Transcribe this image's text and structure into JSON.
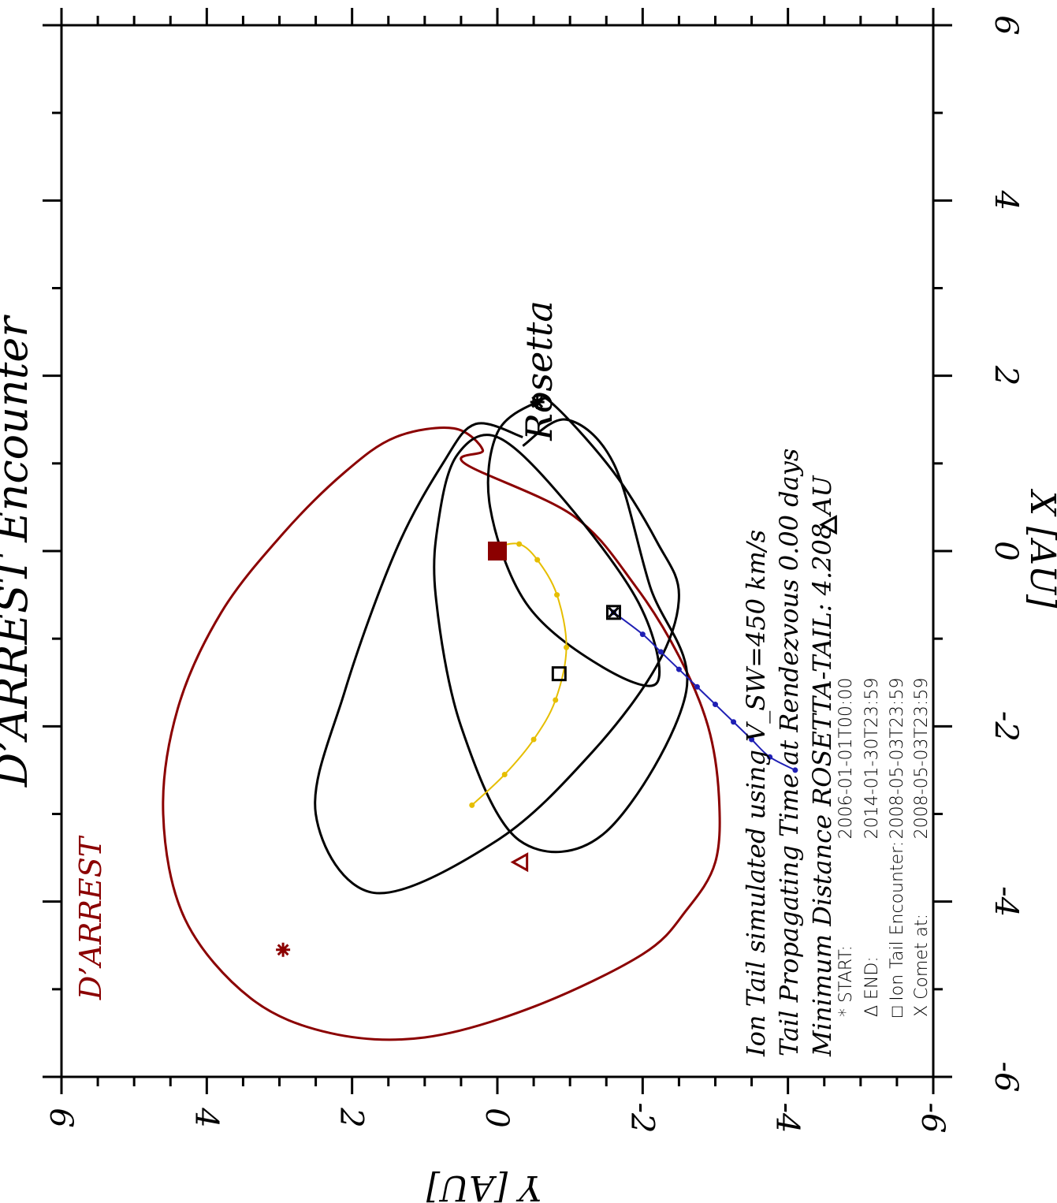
{
  "chart_data": {
    "type": "scatter",
    "title": "D’ARREST Encounter",
    "xlabel": "X [AU]",
    "ylabel": "Y [AU]",
    "xlim": [
      -6,
      6
    ],
    "ylim": [
      -6,
      6
    ],
    "x_ticks": [
      "-6",
      "-4",
      "-2",
      "0",
      "2",
      "4",
      "6"
    ],
    "y_ticks": [
      "6",
      "4",
      "2",
      "0",
      "-2",
      "-4",
      "-6"
    ],
    "grid": false,
    "comet_label": "D’ARREST",
    "spacecraft_label": "Rosetta",
    "info": [
      "Ion Tail simulated using  V_SW=450 km/s",
      "Tail Propagating Time at Rendezvous  0.00 days",
      "Minimum Distance ROSETTA-TAIL: 4.208 AU"
    ],
    "legend": [
      {
        "symbol": "*",
        "label": "START:",
        "value": "2006-01-01T00:00"
      },
      {
        "symbol": "Δ",
        "label": "END:",
        "value": "2014-01-30T23:59"
      },
      {
        "symbol": "□",
        "label": "Ion Tail Encounter:",
        "value": "2008-05-03T23:59"
      },
      {
        "symbol": "X",
        "label": "Comet at:",
        "value": "2008-05-03T23:59"
      }
    ],
    "colors": {
      "comet": "#8b0000",
      "rosetta": "#000000",
      "ion_tail": "#1f1fb4",
      "model_tail": "#e6be00",
      "sun": "#8b0000"
    },
    "series": [
      {
        "name": "D’ARREST",
        "description": "comet orbit",
        "x": [
          1.0,
          0.4,
          -0.4,
          -1.2,
          -2.0,
          -2.8,
          -3.55,
          -4.1,
          -4.6,
          -5.2,
          -5.55,
          -5.5,
          -5.1,
          -4.2,
          -3.0,
          -1.8,
          -0.7,
          0.2,
          0.9,
          1.3,
          1.4,
          1.15
        ],
        "y": [
          0.45,
          -1.05,
          -1.9,
          -2.5,
          -2.9,
          -3.05,
          -3.0,
          -2.6,
          -2.0,
          -0.5,
          1.0,
          2.3,
          3.4,
          4.3,
          4.6,
          4.4,
          3.8,
          2.95,
          2.1,
          1.4,
          0.6,
          0.2
        ]
      },
      {
        "name": "Rosetta",
        "description": "spacecraft trajectory loops",
        "x": [
          1.2,
          1.5,
          1.0,
          -0.4,
          -1.6,
          -3.2,
          -3.3,
          -2.0,
          -0.5,
          0.4,
          1.1,
          1.3,
          0.6,
          -0.6,
          -1.5,
          -1.3,
          -0.6,
          0.5,
          1.35,
          1.7,
          1.65,
          0.9,
          0.1,
          -0.5,
          -1.3,
          -2.3,
          -3.3,
          -3.9,
          -3.0,
          -1.6,
          0.0,
          1.0,
          1.45,
          1.3
        ],
        "y": [
          -0.35,
          -0.95,
          -1.6,
          -2.1,
          -2.6,
          -1.5,
          -0.3,
          0.5,
          0.85,
          0.8,
          0.55,
          0.0,
          -0.9,
          -1.95,
          -2.2,
          -1.4,
          -0.4,
          0.1,
          0.0,
          -0.55,
          -0.8,
          -1.6,
          -2.2,
          -2.5,
          -2.2,
          -1.3,
          0.0,
          1.7,
          2.5,
          2.1,
          1.4,
          0.75,
          0.3,
          -0.35
        ]
      },
      {
        "name": "ion tail",
        "description": "simulated ion tail (blue, dotted)",
        "x": [
          -0.7,
          -0.95,
          -1.15,
          -1.35,
          -1.55,
          -1.75,
          -1.95,
          -2.15,
          -2.35,
          -2.5
        ],
        "y": [
          -1.6,
          -2.0,
          -2.25,
          -2.5,
          -2.75,
          -3.0,
          -3.25,
          -3.5,
          -3.75,
          -4.1
        ]
      },
      {
        "name": "model tail",
        "description": "yellow trajectory from Sun",
        "x": [
          0.05,
          0.08,
          -0.1,
          -0.5,
          -1.1,
          -1.7,
          -2.15,
          -2.55,
          -2.9
        ],
        "y": [
          0.0,
          -0.3,
          -0.55,
          -0.82,
          -0.95,
          -0.8,
          -0.5,
          -0.1,
          0.35
        ]
      }
    ],
    "markers": [
      {
        "name": "Sun",
        "x": 0.0,
        "y": 0.0,
        "symbol": "filled-square"
      },
      {
        "name": "comet start",
        "x": -4.55,
        "y": 2.95,
        "symbol": "star"
      },
      {
        "name": "comet end",
        "x": -3.55,
        "y": -0.3,
        "symbol": "triangle"
      },
      {
        "name": "ion tail encounter",
        "x": -0.7,
        "y": -1.6,
        "symbol": "square"
      },
      {
        "name": "model tail square",
        "x": -1.4,
        "y": -0.85,
        "symbol": "square"
      },
      {
        "name": "comet at",
        "x": -0.7,
        "y": -1.6,
        "symbol": "x"
      },
      {
        "name": "rosetta start",
        "x": 1.7,
        "y": -0.55,
        "symbol": "star"
      },
      {
        "name": "rosetta end",
        "x": 0.3,
        "y": -4.55,
        "symbol": "triangle"
      }
    ]
  }
}
